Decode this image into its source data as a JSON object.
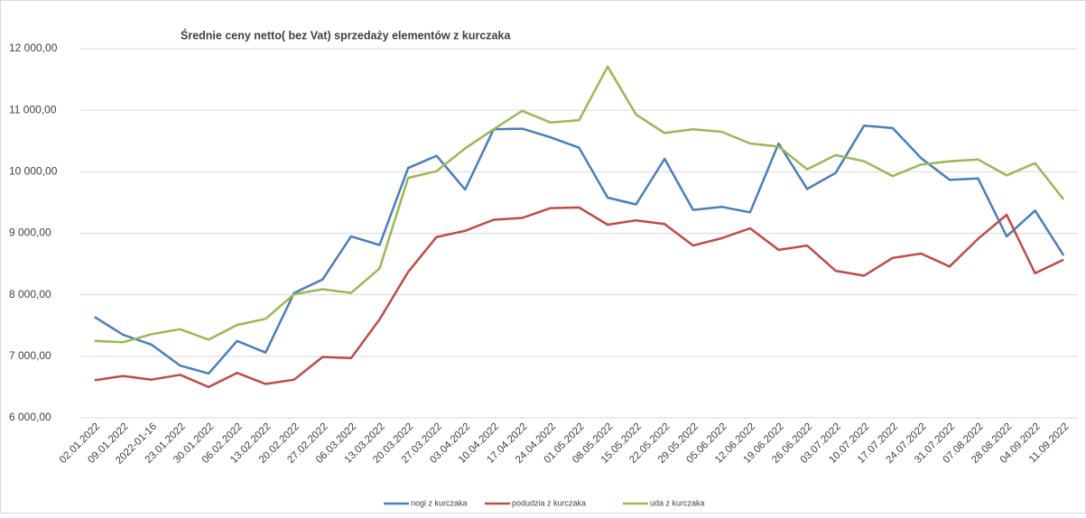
{
  "chart_data": {
    "type": "line",
    "title": "Średnie ceny netto( bez Vat) sprzedaży elementów z kurczaka",
    "categories": [
      "02.01.2022",
      "09.01.2022",
      "2022-01-16",
      "23.01.2022",
      "30.01.2022",
      "06.02.2022",
      "13.02.2022",
      "20.02.2022",
      "27.02.2022",
      "06.03.2022",
      "13.03.2022",
      "20.03.2022",
      "27.03.2022",
      "03.04.2022",
      "10.04.2022",
      "17.04.2022",
      "24.04.2022",
      "01.05.2022",
      "08.05.2022",
      "15.05.2022",
      "22.05.2022",
      "29.05.2022",
      "05.06.2022",
      "12.06.2022",
      "19.06.2022",
      "26.06.2022",
      "03.07.2022",
      "10.07.2022",
      "17.07.2022",
      "24.07.2022",
      "31.07.2022",
      "07.08.2022",
      "28.08.2022",
      "04.09.2022",
      "11.09.2022"
    ],
    "series": [
      {
        "name": "nogi z kurczaka",
        "color": "#4a7ebb",
        "values": [
          7640,
          7350,
          7190,
          6850,
          6720,
          7250,
          7060,
          8030,
          8250,
          8950,
          8810,
          10060,
          10260,
          9710,
          10690,
          10700,
          10560,
          10390,
          9580,
          9470,
          10210,
          9380,
          9430,
          9340,
          10460,
          9720,
          9980,
          10750,
          10710,
          10220,
          9870,
          9890,
          8950,
          9370,
          8640
        ]
      },
      {
        "name": "podudzia z kurczaka",
        "color": "#be4b48",
        "values": [
          6610,
          6680,
          6620,
          6700,
          6500,
          6730,
          6550,
          6620,
          6990,
          6970,
          7600,
          8370,
          8940,
          9040,
          9220,
          9250,
          9410,
          9420,
          9140,
          9210,
          9150,
          8800,
          8920,
          9080,
          8730,
          8800,
          8390,
          8310,
          8600,
          8670,
          8460,
          8910,
          9300,
          8350,
          8570
        ]
      },
      {
        "name": "uda z kurczaka",
        "color": "#98b954",
        "values": [
          7250,
          7230,
          7360,
          7440,
          7270,
          7510,
          7610,
          8010,
          8090,
          8030,
          8430,
          9900,
          10010,
          10380,
          10690,
          10990,
          10800,
          10840,
          11710,
          10930,
          10630,
          10690,
          10650,
          10460,
          10410,
          10040,
          10270,
          10170,
          9930,
          10120,
          10170,
          10200,
          9940,
          10140,
          9550
        ]
      }
    ],
    "ylim": [
      6000,
      12000
    ],
    "yticks": [
      {
        "value": 6000,
        "label": "6 000,00"
      },
      {
        "value": 7000,
        "label": "7 000,00"
      },
      {
        "value": 8000,
        "label": "8 000,00"
      },
      {
        "value": 9000,
        "label": "9 000,00"
      },
      {
        "value": 10000,
        "label": "10 000,00"
      },
      {
        "value": 11000,
        "label": "11 000,00"
      },
      {
        "value": 12000,
        "label": "12 000,00"
      }
    ],
    "grid": true,
    "legend": "bottom"
  }
}
